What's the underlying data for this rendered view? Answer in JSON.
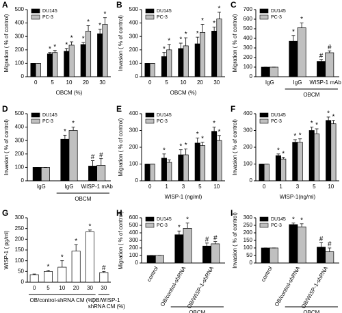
{
  "chart_data": [
    {
      "type": "bar",
      "label": "A",
      "ylabel": "Migration ( % of control)",
      "xlabel": "OBCM (%)",
      "categories": [
        "0",
        "5",
        "10",
        "20",
        "30"
      ],
      "ylim": [
        0,
        500
      ],
      "yticks": [
        0,
        100,
        200,
        300,
        400,
        500
      ],
      "legend": "upper-left",
      "series": [
        {
          "name": "DU145",
          "color": "#000000",
          "values": [
            100,
            170,
            190,
            240,
            320
          ],
          "errors": [
            0,
            10,
            20,
            15,
            35
          ],
          "annotations": [
            null,
            "*",
            "*",
            "*",
            "*"
          ]
        },
        {
          "name": "PC-3",
          "color": "#c0c0c0",
          "values": [
            100,
            180,
            235,
            340,
            390
          ],
          "errors": [
            0,
            15,
            25,
            40,
            50
          ],
          "annotations": [
            null,
            "*",
            "*",
            "*",
            "*"
          ]
        }
      ]
    },
    {
      "type": "bar",
      "label": "B",
      "ylabel": "Invasion ( % of control)",
      "xlabel": "OBCM (%)",
      "categories": [
        "0",
        "5",
        "10",
        "20",
        "30"
      ],
      "ylim": [
        0,
        500
      ],
      "yticks": [
        0,
        100,
        200,
        300,
        400,
        500
      ],
      "legend": "upper-left",
      "series": [
        {
          "name": "DU145",
          "color": "#000000",
          "values": [
            100,
            150,
            210,
            245,
            340
          ],
          "errors": [
            0,
            30,
            40,
            50,
            30
          ],
          "annotations": [
            null,
            "*",
            "*",
            "*",
            "*"
          ]
        },
        {
          "name": "PC-3",
          "color": "#c0c0c0",
          "values": [
            100,
            200,
            230,
            330,
            430
          ],
          "errors": [
            0,
            40,
            60,
            60,
            50
          ],
          "annotations": [
            null,
            "*",
            "*",
            "*",
            "*"
          ]
        }
      ]
    },
    {
      "type": "bar",
      "label": "C",
      "ylabel": "Migration ( % of control)",
      "group_label": "OBCM",
      "categories": [
        "IgG",
        "IgG",
        "WISP-1 mAb"
      ],
      "ylim": [
        0,
        700
      ],
      "yticks": [
        0,
        100,
        200,
        300,
        400,
        500,
        600,
        700
      ],
      "legend": "upper-left",
      "series": [
        {
          "name": "DU145",
          "color": "#000000",
          "values": [
            100,
            370,
            160
          ],
          "errors": [
            0,
            60,
            20
          ],
          "annotations": [
            null,
            "*",
            "#"
          ]
        },
        {
          "name": "PC-3",
          "color": "#c0c0c0",
          "values": [
            100,
            510,
            250
          ],
          "errors": [
            0,
            50,
            20
          ],
          "annotations": [
            null,
            "*",
            "#"
          ]
        }
      ]
    },
    {
      "type": "bar",
      "label": "D",
      "ylabel": "Invasion ( % of control)",
      "group_label": "OBCM",
      "categories": [
        "IgG",
        "IgG",
        "WISP-1 mAb"
      ],
      "ylim": [
        0,
        500
      ],
      "yticks": [
        0,
        100,
        200,
        300,
        400,
        500
      ],
      "legend": "upper-left",
      "series": [
        {
          "name": "DU145",
          "color": "#000000",
          "values": [
            100,
            310,
            110
          ],
          "errors": [
            0,
            30,
            40
          ],
          "annotations": [
            null,
            "*",
            "#"
          ]
        },
        {
          "name": "PC-3",
          "color": "#c0c0c0",
          "values": [
            100,
            375,
            115
          ],
          "errors": [
            0,
            25,
            50
          ],
          "annotations": [
            null,
            "*",
            "#"
          ]
        }
      ]
    },
    {
      "type": "bar",
      "label": "E",
      "ylabel": "Migration ( % of control)",
      "xlabel": "WISP-1 (ng/ml)",
      "categories": [
        "0",
        "1",
        "3",
        "5",
        "10"
      ],
      "ylim": [
        0,
        400
      ],
      "yticks": [
        0,
        100,
        200,
        300,
        400
      ],
      "legend": "upper-left",
      "series": [
        {
          "name": "DU145",
          "color": "#000000",
          "values": [
            100,
            135,
            155,
            225,
            295
          ],
          "errors": [
            0,
            25,
            30,
            30,
            25
          ],
          "annotations": [
            null,
            "*",
            "*",
            "*",
            "*"
          ]
        },
        {
          "name": "PC-3",
          "color": "#c0c0c0",
          "values": [
            100,
            110,
            155,
            210,
            240
          ],
          "errors": [
            0,
            15,
            35,
            20,
            30
          ],
          "annotations": [
            null,
            null,
            "*",
            "*",
            "*"
          ]
        }
      ]
    },
    {
      "type": "bar",
      "label": "F",
      "ylabel": "Invasion ( % of control)",
      "xlabel": "WISP-1(ng/ml)",
      "categories": [
        "0",
        "1",
        "3",
        "5",
        "10"
      ],
      "ylim": [
        0,
        400
      ],
      "yticks": [
        0,
        100,
        200,
        300,
        400
      ],
      "legend": "upper-left",
      "series": [
        {
          "name": "DU145",
          "color": "#000000",
          "values": [
            100,
            150,
            230,
            300,
            360
          ],
          "errors": [
            0,
            10,
            15,
            20,
            20
          ],
          "annotations": [
            null,
            "*",
            "*",
            "*",
            "*"
          ]
        },
        {
          "name": "PC-3",
          "color": "#c0c0c0",
          "values": [
            100,
            130,
            230,
            280,
            340
          ],
          "errors": [
            0,
            10,
            20,
            30,
            20
          ],
          "annotations": [
            null,
            "*",
            "*",
            "*",
            "*"
          ]
        }
      ]
    },
    {
      "type": "bar",
      "label": "G",
      "ylabel": "WISP-1 ( pg/ml)",
      "group_labels": [
        "OB/control-shRNA CM (%)",
        "OB/WISP-1 shRNA CM (%)"
      ],
      "categories": [
        "0",
        "5",
        "10",
        "20",
        "30",
        "30"
      ],
      "ylim": [
        0,
        300
      ],
      "yticks": [
        0,
        50,
        100,
        150,
        200,
        250,
        300
      ],
      "series": [
        {
          "color": "#ffffff",
          "values": [
            35,
            50,
            70,
            145,
            235,
            45
          ],
          "errors": [
            3,
            5,
            30,
            30,
            8,
            5
          ],
          "annotations": [
            null,
            "*",
            "*",
            "*",
            "*",
            "#"
          ]
        }
      ]
    },
    {
      "type": "bar",
      "label": "H",
      "ylabel": "Migration ( % of control)",
      "group_label": "OBCM",
      "rotate_labels": true,
      "categories": [
        "control",
        "OB/control-shRNA",
        "OB/WISP-1-shRNA"
      ],
      "ylim": [
        0,
        600
      ],
      "yticks": [
        0,
        100,
        200,
        300,
        400,
        500,
        600
      ],
      "legend": "upper-left",
      "series": [
        {
          "name": "DU145",
          "color": "#000000",
          "values": [
            100,
            375,
            225
          ],
          "errors": [
            0,
            50,
            40
          ],
          "annotations": [
            null,
            "*",
            "#"
          ]
        },
        {
          "name": "PC-3",
          "color": "#c0c0c0",
          "values": [
            100,
            460,
            255
          ],
          "errors": [
            0,
            70,
            30
          ],
          "annotations": [
            null,
            "*",
            "#"
          ]
        }
      ]
    },
    {
      "type": "bar",
      "label": "I",
      "ylabel": "Invasion ( % of control)",
      "group_label": "OBCM",
      "rotate_labels": true,
      "categories": [
        "control",
        "OB/control-shRNA",
        "OB/WISP-1-shRNA"
      ],
      "ylim": [
        0,
        300
      ],
      "yticks": [
        0,
        50,
        100,
        150,
        200,
        250,
        300
      ],
      "legend": "upper-left",
      "series": [
        {
          "name": "DU145",
          "color": "#000000",
          "values": [
            100,
            255,
            105
          ],
          "errors": [
            0,
            10,
            30
          ],
          "annotations": [
            null,
            "*",
            "#"
          ]
        },
        {
          "name": "PC-3",
          "color": "#c0c0c0",
          "values": [
            100,
            240,
            75
          ],
          "errors": [
            0,
            20,
            25
          ],
          "annotations": [
            null,
            "*",
            "#"
          ]
        }
      ]
    }
  ]
}
